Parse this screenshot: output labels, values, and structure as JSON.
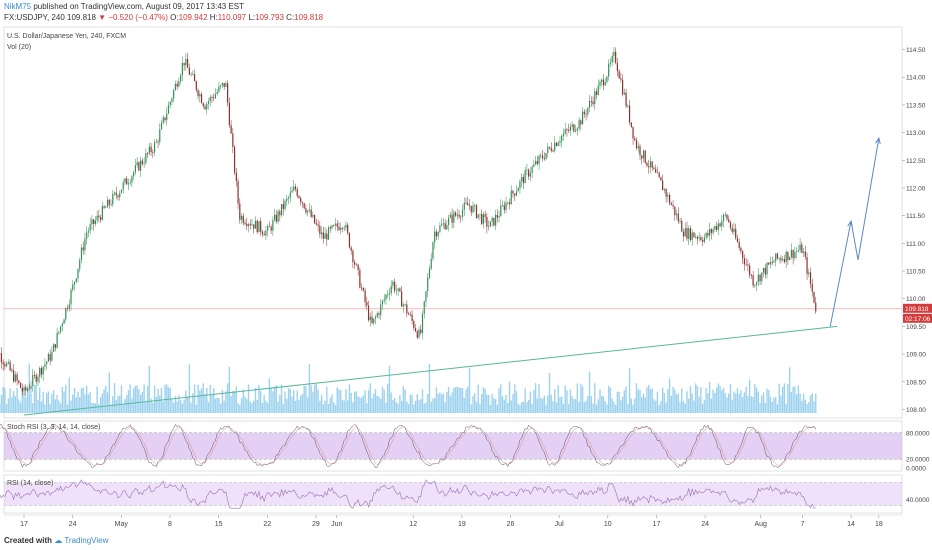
{
  "header": {
    "user": "NikM75",
    "published": "published on TradingView.com, August 09, 2017 13:43 EST",
    "symbol": "FX:USDJPY, 240",
    "last": "109.818",
    "change": "−0.520 (−0.47%)",
    "o_label": "O:",
    "o": "109.942",
    "h_label": "H:",
    "h": "110.097",
    "l_label": "L:",
    "l": "109.793",
    "c_label": "C:",
    "c": "109.818"
  },
  "legend": {
    "instrument": "U.S. Dollar/Japanese Yen, 240, FXCM",
    "volume": "Vol (20)",
    "stoch": "Stoch RSI (3, 3, 14, 14, close)",
    "rsi": "RSI (14, close)"
  },
  "chart_data": {
    "type": "candlestick",
    "timeframe": "240",
    "x_ticks": [
      "17",
      "24",
      "May",
      "8",
      "15",
      "22",
      "29",
      "Jun",
      "12",
      "19",
      "26",
      "Jul",
      "10",
      "17",
      "24",
      "Aug",
      "7",
      "14",
      "18"
    ],
    "y_ticks": [
      "114.50",
      "114.00",
      "113.50",
      "113.00",
      "112.50",
      "112.00",
      "111.50",
      "111.00",
      "110.50",
      "110.00",
      "109.50",
      "109.00",
      "108.50",
      "108.00"
    ],
    "ylim": [
      107.9,
      114.6
    ],
    "last_price": "109.818",
    "countdown": "02:17:06",
    "price_path": [
      {
        "date": "2017-04-12",
        "close": 109.3
      },
      {
        "date": "2017-04-17",
        "close": 108.3
      },
      {
        "date": "2017-04-21",
        "close": 109.0
      },
      {
        "date": "2017-04-24",
        "close": 110.2
      },
      {
        "date": "2017-04-26",
        "close": 111.2
      },
      {
        "date": "2017-05-01",
        "close": 112.0
      },
      {
        "date": "2017-05-06",
        "close": 112.8
      },
      {
        "date": "2017-05-10",
        "close": 114.3
      },
      {
        "date": "2017-05-13",
        "close": 113.5
      },
      {
        "date": "2017-05-16",
        "close": 113.9
      },
      {
        "date": "2017-05-18",
        "close": 111.5
      },
      {
        "date": "2017-05-22",
        "close": 111.2
      },
      {
        "date": "2017-05-26",
        "close": 112.0
      },
      {
        "date": "2017-05-30",
        "close": 111.1
      },
      {
        "date": "2017-06-02",
        "close": 111.4
      },
      {
        "date": "2017-06-06",
        "close": 109.5
      },
      {
        "date": "2017-06-09",
        "close": 110.3
      },
      {
        "date": "2017-06-13",
        "close": 109.3
      },
      {
        "date": "2017-06-15",
        "close": 111.2
      },
      {
        "date": "2017-06-20",
        "close": 111.7
      },
      {
        "date": "2017-06-23",
        "close": 111.3
      },
      {
        "date": "2017-06-28",
        "close": 112.2
      },
      {
        "date": "2017-07-03",
        "close": 112.9
      },
      {
        "date": "2017-07-06",
        "close": 113.2
      },
      {
        "date": "2017-07-10",
        "close": 114.1
      },
      {
        "date": "2017-07-11",
        "close": 114.4
      },
      {
        "date": "2017-07-14",
        "close": 112.8
      },
      {
        "date": "2017-07-18",
        "close": 112.0
      },
      {
        "date": "2017-07-21",
        "close": 111.2
      },
      {
        "date": "2017-07-24",
        "close": 111.1
      },
      {
        "date": "2017-07-27",
        "close": 111.5
      },
      {
        "date": "2017-07-31",
        "close": 110.3
      },
      {
        "date": "2017-08-03",
        "close": 110.7
      },
      {
        "date": "2017-08-07",
        "close": 110.9
      },
      {
        "date": "2017-08-09",
        "close": 109.8
      }
    ],
    "trendline": [
      {
        "date": "2017-04-17",
        "price": 107.9
      },
      {
        "date": "2017-08-12",
        "price": 109.5
      }
    ],
    "forecast_arrow": [
      {
        "date": "2017-08-11",
        "price": 109.5
      },
      {
        "date": "2017-08-14",
        "price": 111.4
      },
      {
        "date": "2017-08-15",
        "price": 110.7
      },
      {
        "date": "2017-08-18",
        "price": 112.9
      }
    ],
    "stoch_ticks": [
      "80.0000",
      "20.0000",
      "0.0000"
    ],
    "rsi_ticks": [
      "40.0000"
    ]
  },
  "footer": {
    "created": "Created with",
    "brand": "TradingView"
  },
  "colors": {
    "up": "#2f8f57",
    "down": "#8b2f2f",
    "trend": "#58b79b",
    "forecast": "#5a88c6",
    "volume": "#7cc3ea",
    "stoch_fill": "#cfa9ec",
    "rsi_fill": "#e8d4f6",
    "price_line": "#e46a6a"
  }
}
